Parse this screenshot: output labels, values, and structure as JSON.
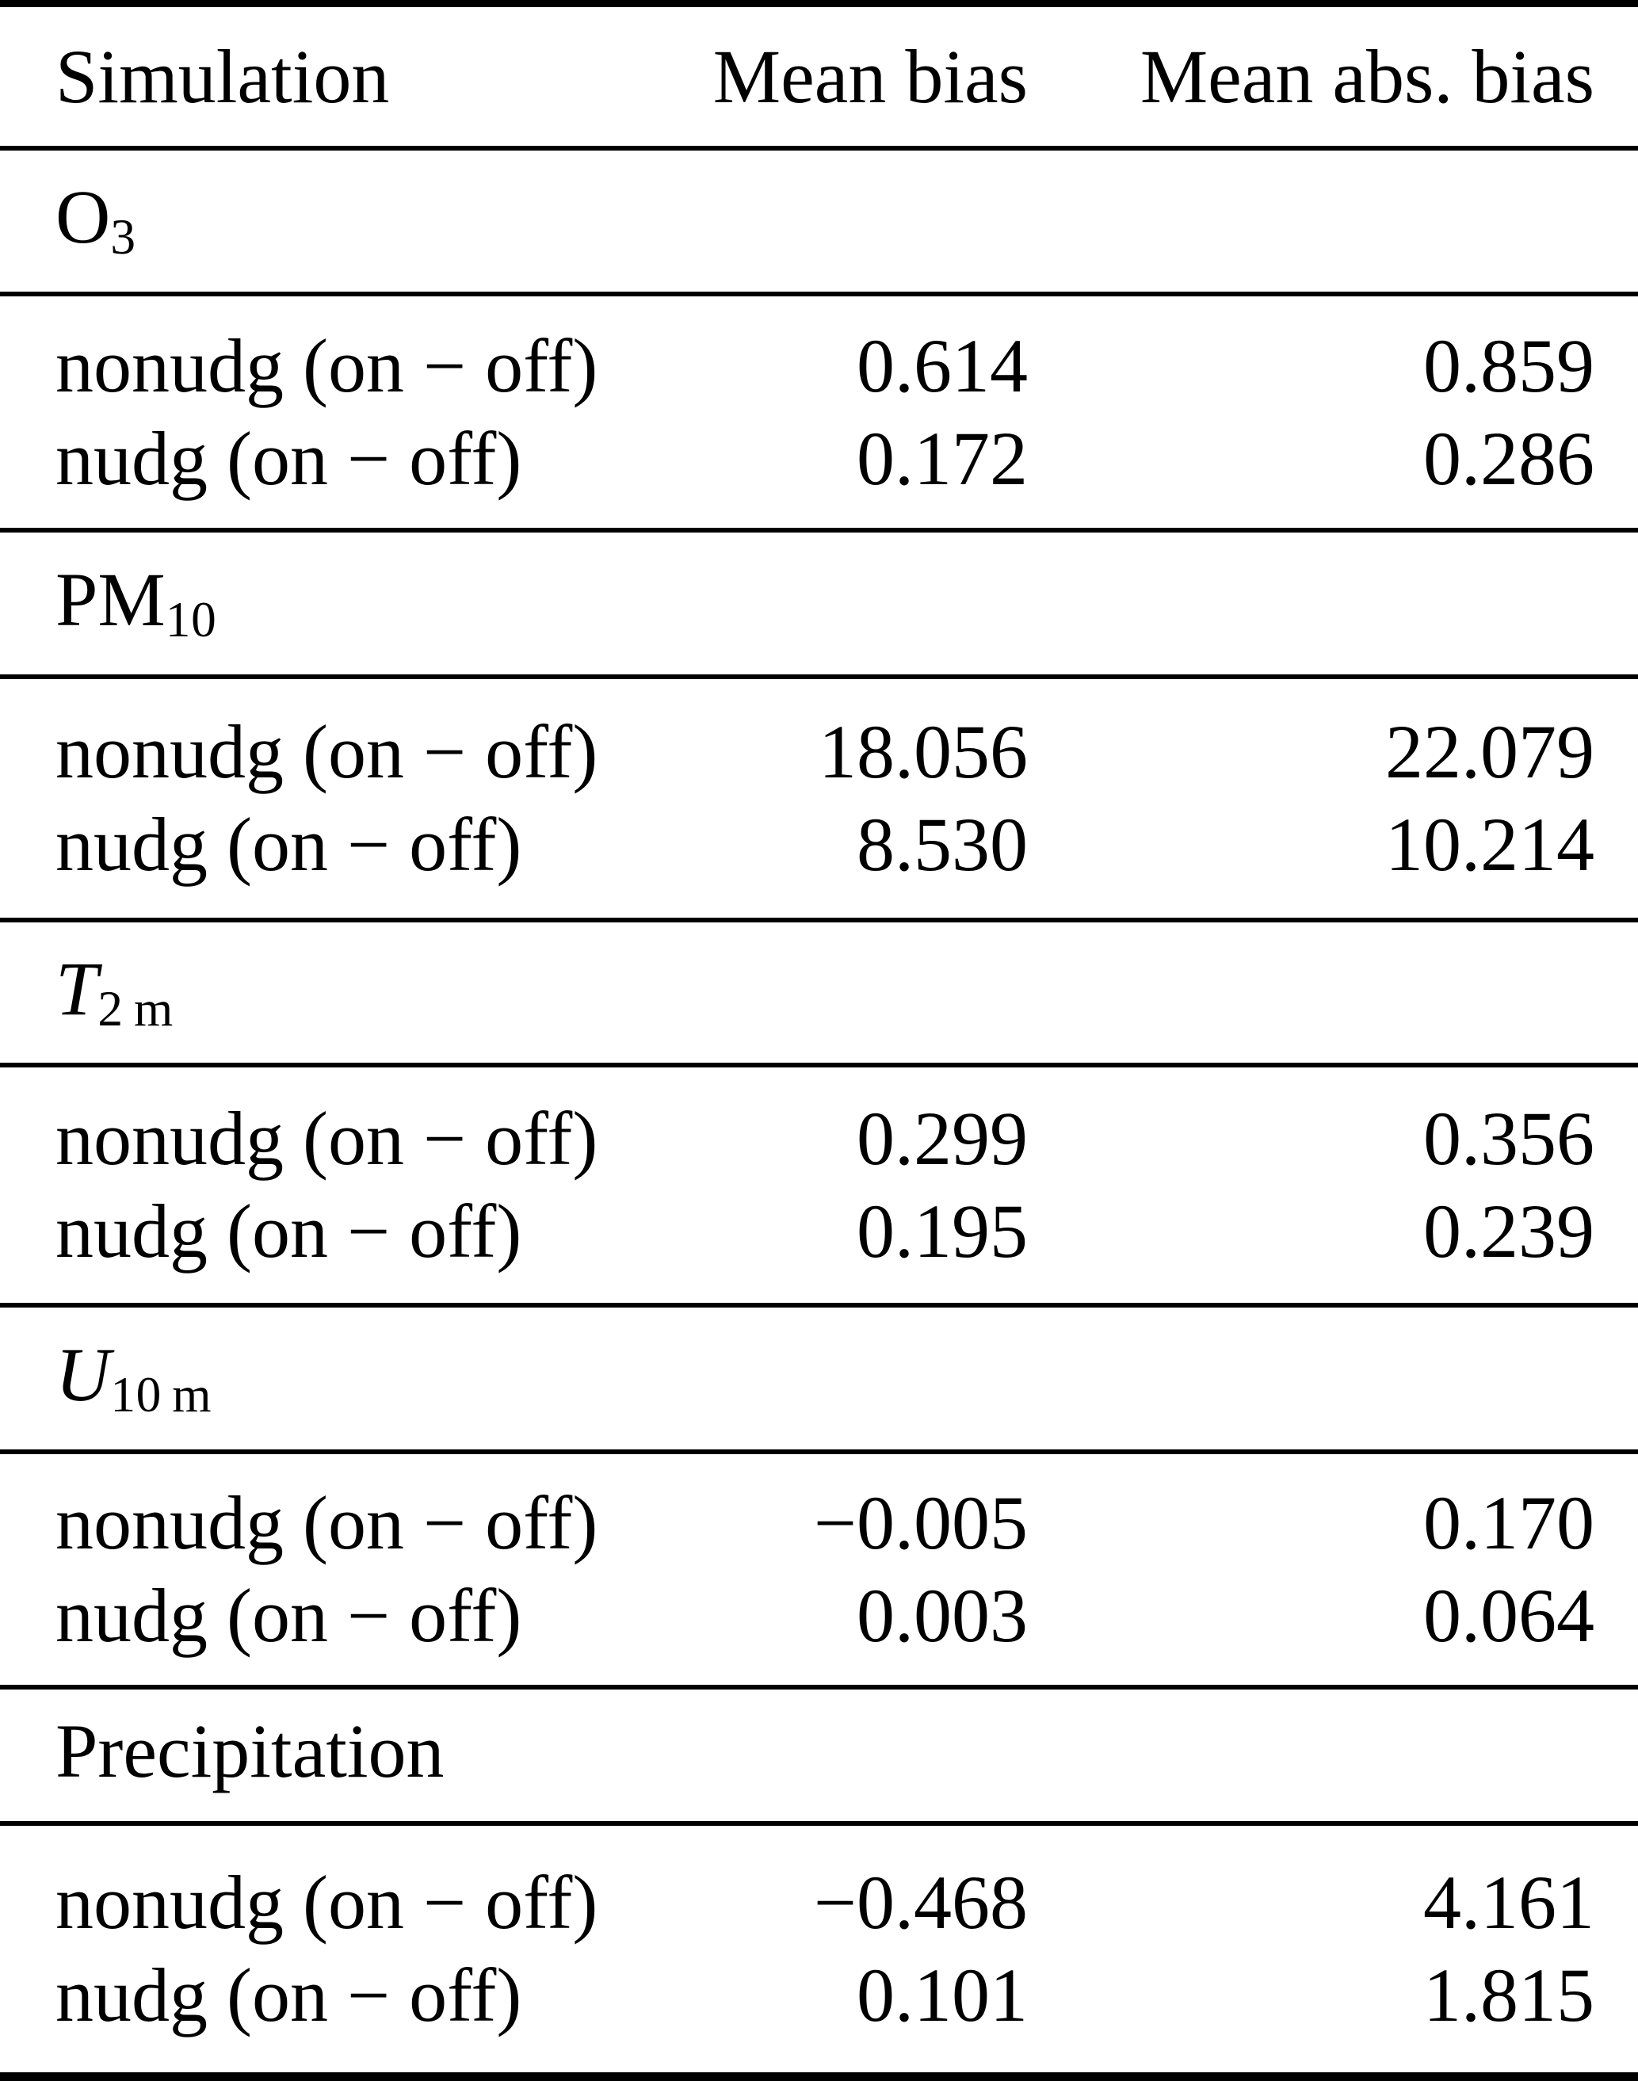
{
  "table": {
    "columns": {
      "simulation": "Simulation",
      "mean_bias": "Mean bias",
      "mean_abs_bias": "Mean abs. bias"
    },
    "sections": [
      {
        "base": "O",
        "sub": "3",
        "rows": [
          {
            "label": "nonudg (on − off)",
            "mean_bias": "0.614",
            "mean_abs_bias": "0.859"
          },
          {
            "label": "nudg (on − off)",
            "mean_bias": "0.172",
            "mean_abs_bias": "0.286"
          }
        ]
      },
      {
        "base": "PM",
        "sub": "10",
        "rows": [
          {
            "label": "nonudg (on − off)",
            "mean_bias": "18.056",
            "mean_abs_bias": "22.079"
          },
          {
            "label": "nudg (on − off)",
            "mean_bias": "8.530",
            "mean_abs_bias": "10.214"
          }
        ]
      },
      {
        "base": "T",
        "sub": "2 m",
        "rows": [
          {
            "label": "nonudg (on − off)",
            "mean_bias": "0.299",
            "mean_abs_bias": "0.356"
          },
          {
            "label": "nudg (on − off)",
            "mean_bias": "0.195",
            "mean_abs_bias": "0.239"
          }
        ]
      },
      {
        "base": "U",
        "sub": "10 m",
        "rows": [
          {
            "label": "nonudg (on − off)",
            "mean_bias": "−0.005",
            "mean_abs_bias": "0.170"
          },
          {
            "label": "nudg (on − off)",
            "mean_bias": "0.003",
            "mean_abs_bias": "0.064"
          }
        ]
      },
      {
        "base": "Precipitation",
        "sub": "",
        "rows": [
          {
            "label": "nonudg (on − off)",
            "mean_bias": "−0.468",
            "mean_abs_bias": "4.161"
          },
          {
            "label": "nudg (on − off)",
            "mean_bias": "0.101",
            "mean_abs_bias": "1.815"
          }
        ]
      }
    ]
  }
}
